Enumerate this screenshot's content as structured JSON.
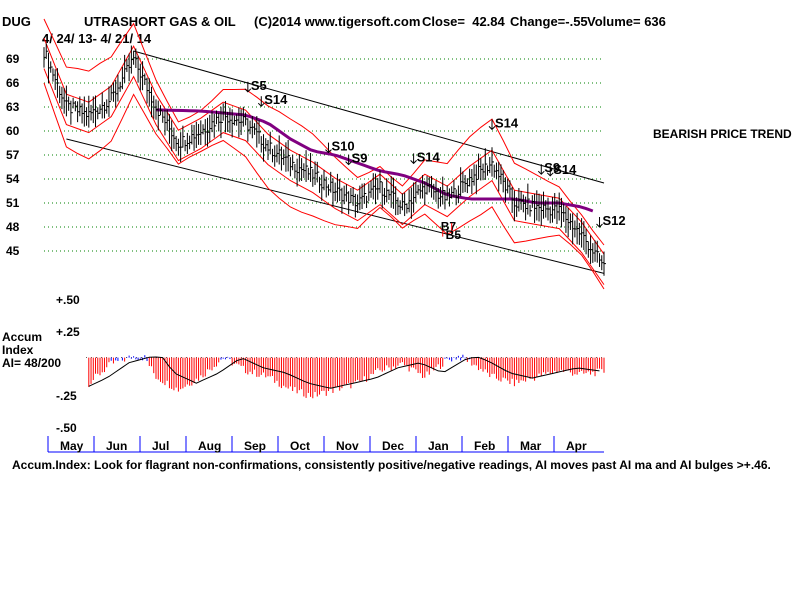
{
  "header": {
    "symbol": "DUG",
    "name": "UTRASHORT GAS & OIL",
    "copyright": "(C)2014 www.tigersoft.com",
    "close": "Close=  42.84",
    "change": "Change=-.55",
    "volume": "Volume= 636",
    "daterange": "4/ 24/ 13- 4/ 21/ 14"
  },
  "trend_label": "BEARISH PRICE TREND",
  "accum_label": {
    "line1": "Accum",
    "line2": "Index",
    "line3": "AI= 48/200"
  },
  "footer": "Accum.Index: Look for flagrant non-confirmations, consistently positive/negative readings, AI moves past AI ma and AI bulges >+.46.",
  "colors": {
    "price": "#000000",
    "bands": "#ff0000",
    "ma": "#800080",
    "grid": "#008000",
    "channel": "#000000",
    "ai_positive": "#0000ff",
    "ai_negative": "#ff0000",
    "month_tick": "#0000ff"
  },
  "chart_data": [
    {
      "type": "candlestick",
      "title": "UTRASHORT GAS & OIL",
      "y_ticks": [
        "69",
        "66",
        "63",
        "60",
        "57",
        "54",
        "51",
        "48",
        "45"
      ],
      "ylim": [
        42,
        71
      ],
      "x_labels": [
        "May",
        "Jun",
        "Jul",
        "Aug",
        "Sep",
        "Oct",
        "Nov",
        "Dec",
        "Jan",
        "Feb",
        "Mar",
        "Apr"
      ],
      "grid": true,
      "series": [
        {
          "name": "DUG",
          "x": [
            0,
            10,
            20,
            30,
            40,
            50,
            60,
            70,
            80,
            90,
            100,
            110,
            120,
            130,
            140,
            150,
            160,
            170,
            180,
            190,
            200,
            210,
            220,
            230,
            240,
            250
          ],
          "values": [
            70,
            63,
            62,
            64,
            69,
            63,
            58.5,
            60,
            62,
            61,
            58,
            56,
            54.5,
            52.5,
            51,
            53,
            50.5,
            53,
            51.5,
            54,
            56,
            51,
            50.5,
            50,
            47,
            43
          ]
        },
        {
          "name": "MA",
          "x": [
            0,
            70,
            90,
            100,
            110,
            120,
            130,
            140,
            150,
            160,
            170,
            180,
            190,
            200,
            210,
            220,
            230,
            240,
            245
          ],
          "values": [
            63,
            62.5,
            62,
            61,
            59,
            57.5,
            57,
            56,
            55,
            54.5,
            53.5,
            52,
            51.5,
            51.5,
            51.5,
            51,
            51,
            50.5,
            50
          ]
        }
      ],
      "signals": [
        {
          "label": "S5",
          "x": 91,
          "direction": "down"
        },
        {
          "label": "S14",
          "x": 97,
          "direction": "down"
        },
        {
          "label": "S10",
          "x": 127,
          "direction": "down"
        },
        {
          "label": "S9",
          "x": 136,
          "direction": "down"
        },
        {
          "label": "S14",
          "x": 165,
          "direction": "down"
        },
        {
          "label": "S14",
          "x": 200,
          "direction": "down"
        },
        {
          "label": "S14",
          "x": 226,
          "direction": "down"
        },
        {
          "label": "S9",
          "x": 222,
          "direction": "down"
        },
        {
          "label": "S12",
          "x": 248,
          "direction": "down"
        },
        {
          "label": "B7",
          "x": 178,
          "direction": "up"
        },
        {
          "label": "B5",
          "x": 182,
          "direction": "up"
        }
      ]
    },
    {
      "type": "area",
      "title": "Accum Index",
      "y_ticks": [
        "+.50",
        "+.25",
        "-.25",
        "-.50"
      ],
      "ylim": [
        -0.5,
        0.5
      ],
      "x": [
        0,
        10,
        20,
        30,
        40,
        45,
        50,
        60,
        70,
        80,
        90,
        100,
        110,
        120,
        130,
        140,
        150,
        160,
        170,
        180,
        185,
        190,
        200,
        210,
        220,
        230,
        240,
        250
      ],
      "values": [
        -0.3,
        -0.25,
        -0.15,
        0.0,
        0.06,
        0.05,
        -0.1,
        -0.2,
        -0.1,
        0.05,
        -0.05,
        -0.1,
        -0.2,
        -0.25,
        -0.2,
        -0.15,
        -0.05,
        0.0,
        -0.1,
        0.03,
        0.06,
        0.02,
        -0.1,
        -0.15,
        -0.1,
        -0.05,
        -0.08,
        -0.06
      ]
    }
  ]
}
